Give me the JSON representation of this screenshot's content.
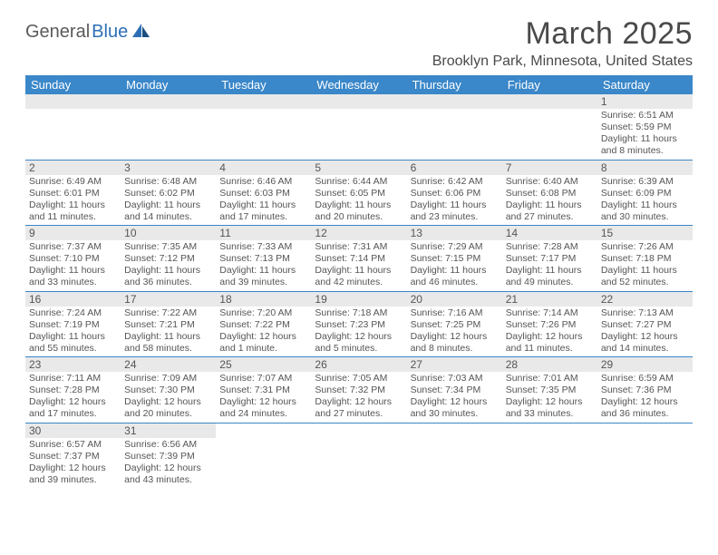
{
  "logo": {
    "part1": "General",
    "part2": "Blue"
  },
  "title": "March 2025",
  "location": "Brooklyn Park, Minnesota, United States",
  "colors": {
    "header_bg": "#3a87c9",
    "header_text": "#ffffff",
    "daynum_bg": "#e9e9e9",
    "text": "#555555",
    "border": "#3a87c9"
  },
  "weekdays": [
    "Sunday",
    "Monday",
    "Tuesday",
    "Wednesday",
    "Thursday",
    "Friday",
    "Saturday"
  ],
  "weeks": [
    [
      null,
      null,
      null,
      null,
      null,
      null,
      {
        "n": "1",
        "sr": "6:51 AM",
        "ss": "5:59 PM",
        "dl": "11 hours and 8 minutes."
      }
    ],
    [
      {
        "n": "2",
        "sr": "6:49 AM",
        "ss": "6:01 PM",
        "dl": "11 hours and 11 minutes."
      },
      {
        "n": "3",
        "sr": "6:48 AM",
        "ss": "6:02 PM",
        "dl": "11 hours and 14 minutes."
      },
      {
        "n": "4",
        "sr": "6:46 AM",
        "ss": "6:03 PM",
        "dl": "11 hours and 17 minutes."
      },
      {
        "n": "5",
        "sr": "6:44 AM",
        "ss": "6:05 PM",
        "dl": "11 hours and 20 minutes."
      },
      {
        "n": "6",
        "sr": "6:42 AM",
        "ss": "6:06 PM",
        "dl": "11 hours and 23 minutes."
      },
      {
        "n": "7",
        "sr": "6:40 AM",
        "ss": "6:08 PM",
        "dl": "11 hours and 27 minutes."
      },
      {
        "n": "8",
        "sr": "6:39 AM",
        "ss": "6:09 PM",
        "dl": "11 hours and 30 minutes."
      }
    ],
    [
      {
        "n": "9",
        "sr": "7:37 AM",
        "ss": "7:10 PM",
        "dl": "11 hours and 33 minutes."
      },
      {
        "n": "10",
        "sr": "7:35 AM",
        "ss": "7:12 PM",
        "dl": "11 hours and 36 minutes."
      },
      {
        "n": "11",
        "sr": "7:33 AM",
        "ss": "7:13 PM",
        "dl": "11 hours and 39 minutes."
      },
      {
        "n": "12",
        "sr": "7:31 AM",
        "ss": "7:14 PM",
        "dl": "11 hours and 42 minutes."
      },
      {
        "n": "13",
        "sr": "7:29 AM",
        "ss": "7:15 PM",
        "dl": "11 hours and 46 minutes."
      },
      {
        "n": "14",
        "sr": "7:28 AM",
        "ss": "7:17 PM",
        "dl": "11 hours and 49 minutes."
      },
      {
        "n": "15",
        "sr": "7:26 AM",
        "ss": "7:18 PM",
        "dl": "11 hours and 52 minutes."
      }
    ],
    [
      {
        "n": "16",
        "sr": "7:24 AM",
        "ss": "7:19 PM",
        "dl": "11 hours and 55 minutes."
      },
      {
        "n": "17",
        "sr": "7:22 AM",
        "ss": "7:21 PM",
        "dl": "11 hours and 58 minutes."
      },
      {
        "n": "18",
        "sr": "7:20 AM",
        "ss": "7:22 PM",
        "dl": "12 hours and 1 minute."
      },
      {
        "n": "19",
        "sr": "7:18 AM",
        "ss": "7:23 PM",
        "dl": "12 hours and 5 minutes."
      },
      {
        "n": "20",
        "sr": "7:16 AM",
        "ss": "7:25 PM",
        "dl": "12 hours and 8 minutes."
      },
      {
        "n": "21",
        "sr": "7:14 AM",
        "ss": "7:26 PM",
        "dl": "12 hours and 11 minutes."
      },
      {
        "n": "22",
        "sr": "7:13 AM",
        "ss": "7:27 PM",
        "dl": "12 hours and 14 minutes."
      }
    ],
    [
      {
        "n": "23",
        "sr": "7:11 AM",
        "ss": "7:28 PM",
        "dl": "12 hours and 17 minutes."
      },
      {
        "n": "24",
        "sr": "7:09 AM",
        "ss": "7:30 PM",
        "dl": "12 hours and 20 minutes."
      },
      {
        "n": "25",
        "sr": "7:07 AM",
        "ss": "7:31 PM",
        "dl": "12 hours and 24 minutes."
      },
      {
        "n": "26",
        "sr": "7:05 AM",
        "ss": "7:32 PM",
        "dl": "12 hours and 27 minutes."
      },
      {
        "n": "27",
        "sr": "7:03 AM",
        "ss": "7:34 PM",
        "dl": "12 hours and 30 minutes."
      },
      {
        "n": "28",
        "sr": "7:01 AM",
        "ss": "7:35 PM",
        "dl": "12 hours and 33 minutes."
      },
      {
        "n": "29",
        "sr": "6:59 AM",
        "ss": "7:36 PM",
        "dl": "12 hours and 36 minutes."
      }
    ],
    [
      {
        "n": "30",
        "sr": "6:57 AM",
        "ss": "7:37 PM",
        "dl": "12 hours and 39 minutes."
      },
      {
        "n": "31",
        "sr": "6:56 AM",
        "ss": "7:39 PM",
        "dl": "12 hours and 43 minutes."
      },
      null,
      null,
      null,
      null,
      null
    ]
  ]
}
